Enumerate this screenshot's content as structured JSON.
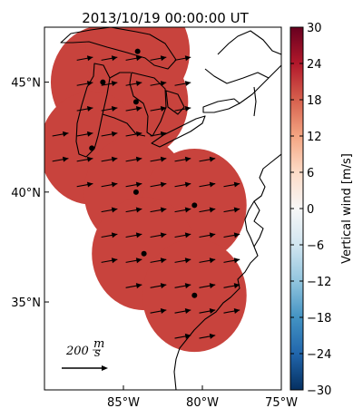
{
  "title": "2013/10/19 00:00:00 UT",
  "map": {
    "lon_range": [
      -90,
      -75
    ],
    "lat_range": [
      31,
      47.5
    ],
    "lat_ticks": [
      {
        "value": 45,
        "label": "45°N"
      },
      {
        "value": 40,
        "label": "40°N"
      },
      {
        "value": 35,
        "label": "35°N"
      }
    ],
    "lon_ticks": [
      {
        "value": -85,
        "label": "85°W"
      },
      {
        "value": -80,
        "label": "80°W"
      },
      {
        "value": -75,
        "label": "75°W"
      }
    ],
    "field_color": "#c8433d",
    "coastline_color": "#000000",
    "stations": [
      {
        "lat": 45.0,
        "lon": -86.3
      },
      {
        "lat": 44.1,
        "lon": -84.2
      },
      {
        "lat": 46.4,
        "lon": -84.1
      },
      {
        "lat": 42.0,
        "lon": -87.0
      },
      {
        "lat": 40.0,
        "lon": -84.2
      },
      {
        "lat": 39.4,
        "lon": -80.5
      },
      {
        "lat": 37.2,
        "lon": -83.7
      },
      {
        "lat": 35.3,
        "lon": -80.5
      }
    ]
  },
  "scale_arrow": {
    "value": 200,
    "unit": "m/s",
    "label": "200",
    "unit_num": "m",
    "unit_den": "s"
  },
  "colorbar": {
    "label": "Vertical wind [m/s]",
    "min": -30,
    "max": 30,
    "ticks": [
      "30",
      "24",
      "18",
      "12",
      "6",
      "0",
      "−6",
      "−12",
      "−18",
      "−24",
      "−30"
    ],
    "tick_values": [
      30,
      24,
      18,
      12,
      6,
      0,
      -6,
      -12,
      -18,
      -24,
      -30
    ],
    "colors": [
      "#053061",
      "#2166ac",
      "#4393c3",
      "#92c5de",
      "#d1e5f0",
      "#f7f7f7",
      "#fddbc7",
      "#f4a582",
      "#d6604d",
      "#b2182b",
      "#67001f"
    ]
  }
}
